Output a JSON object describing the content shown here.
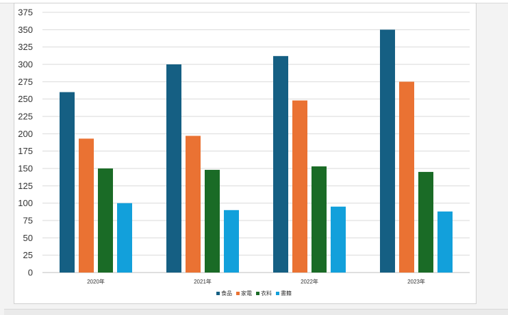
{
  "chart_data": {
    "type": "bar",
    "categories": [
      "2020年",
      "2021年",
      "2022年",
      "2023年"
    ],
    "series": [
      {
        "name": "食品",
        "color": "#155f83",
        "values": [
          260,
          300,
          312,
          350
        ]
      },
      {
        "name": "家電",
        "color": "#ea7233",
        "values": [
          193,
          197,
          248,
          275
        ]
      },
      {
        "name": "衣料",
        "color": "#1a6b26",
        "values": [
          150,
          148,
          153,
          145
        ]
      },
      {
        "name": "書籍",
        "color": "#12a0db",
        "values": [
          100,
          90,
          95,
          88
        ]
      }
    ],
    "title": "",
    "xlabel": "",
    "ylabel": "",
    "ylim": [
      0,
      375
    ],
    "ytick_step": 25,
    "grid": true,
    "legend_position": "bottom"
  }
}
